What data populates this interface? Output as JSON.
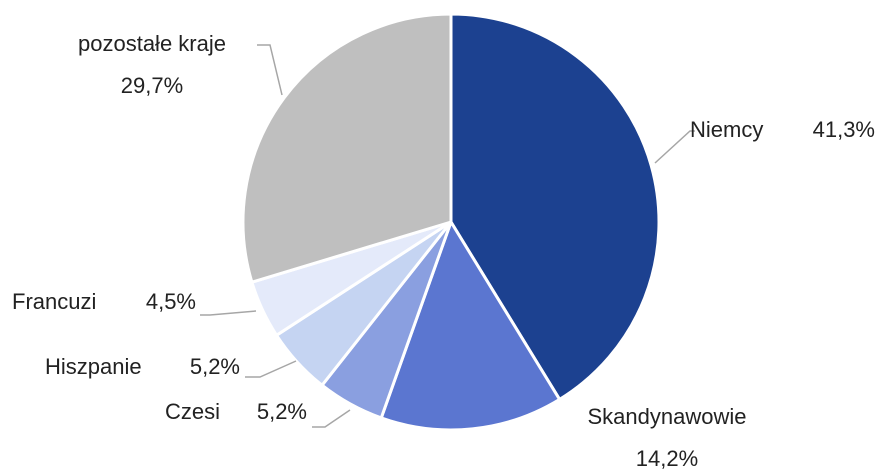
{
  "chart_data": {
    "type": "pie",
    "categories": [
      "Niemcy",
      "Skandynawowie",
      "Czesi",
      "Hiszpanie",
      "Francuzi",
      "pozostałe kraje"
    ],
    "values": [
      41.3,
      14.2,
      5.2,
      5.2,
      4.5,
      29.7
    ],
    "value_labels": [
      "41,3%",
      "14,2%",
      "5,2%",
      "5,2%",
      "4,5%",
      "29,7%"
    ],
    "colors": [
      "#1c4190",
      "#5b76d0",
      "#8a9fe0",
      "#c5d4f2",
      "#e4eafa",
      "#bfbfbf"
    ]
  }
}
